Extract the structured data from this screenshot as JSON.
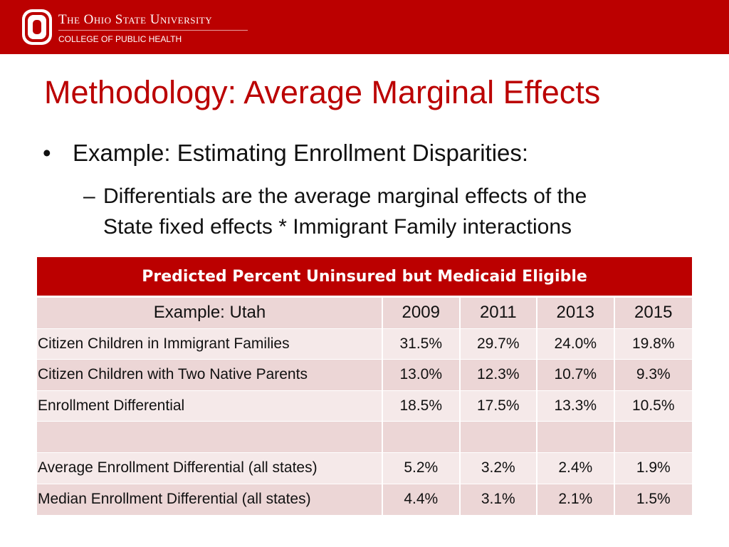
{
  "header": {
    "university": "The Ohio State University",
    "college": "COLLEGE OF PUBLIC HEALTH",
    "brand_color": "#bb0000"
  },
  "slide": {
    "title": "Methodology: Average Marginal Effects",
    "bullet": "Example:  Estimating Enrollment Disparities:",
    "sub_line1": "Differentials are the average marginal effects of the",
    "sub_line2": "State fixed effects * Immigrant Family interactions"
  },
  "table": {
    "title": "Predicted Percent Uninsured but Medicaid Eligible",
    "columns": [
      "Example:  Utah",
      "2009",
      "2011",
      "2013",
      "2015"
    ],
    "rows": [
      {
        "label": "Citizen Children in Immigrant Families",
        "values": [
          "31.5%",
          "29.7%",
          "24.0%",
          "19.8%"
        ]
      },
      {
        "label": "Citizen Children with Two Native Parents",
        "values": [
          "13.0%",
          "12.3%",
          "10.7%",
          "9.3%"
        ]
      },
      {
        "label": "Enrollment Differential",
        "values": [
          "18.5%",
          "17.5%",
          "13.3%",
          "10.5%"
        ]
      },
      {
        "label": "",
        "values": [
          "",
          "",
          "",
          ""
        ]
      },
      {
        "label": "Average Enrollment Differential (all states)",
        "values": [
          "5.2%",
          "3.2%",
          "2.4%",
          "1.9%"
        ]
      },
      {
        "label": "Median Enrollment Differential (all states)",
        "values": [
          "4.4%",
          "3.1%",
          "2.1%",
          "1.5%"
        ]
      }
    ]
  }
}
